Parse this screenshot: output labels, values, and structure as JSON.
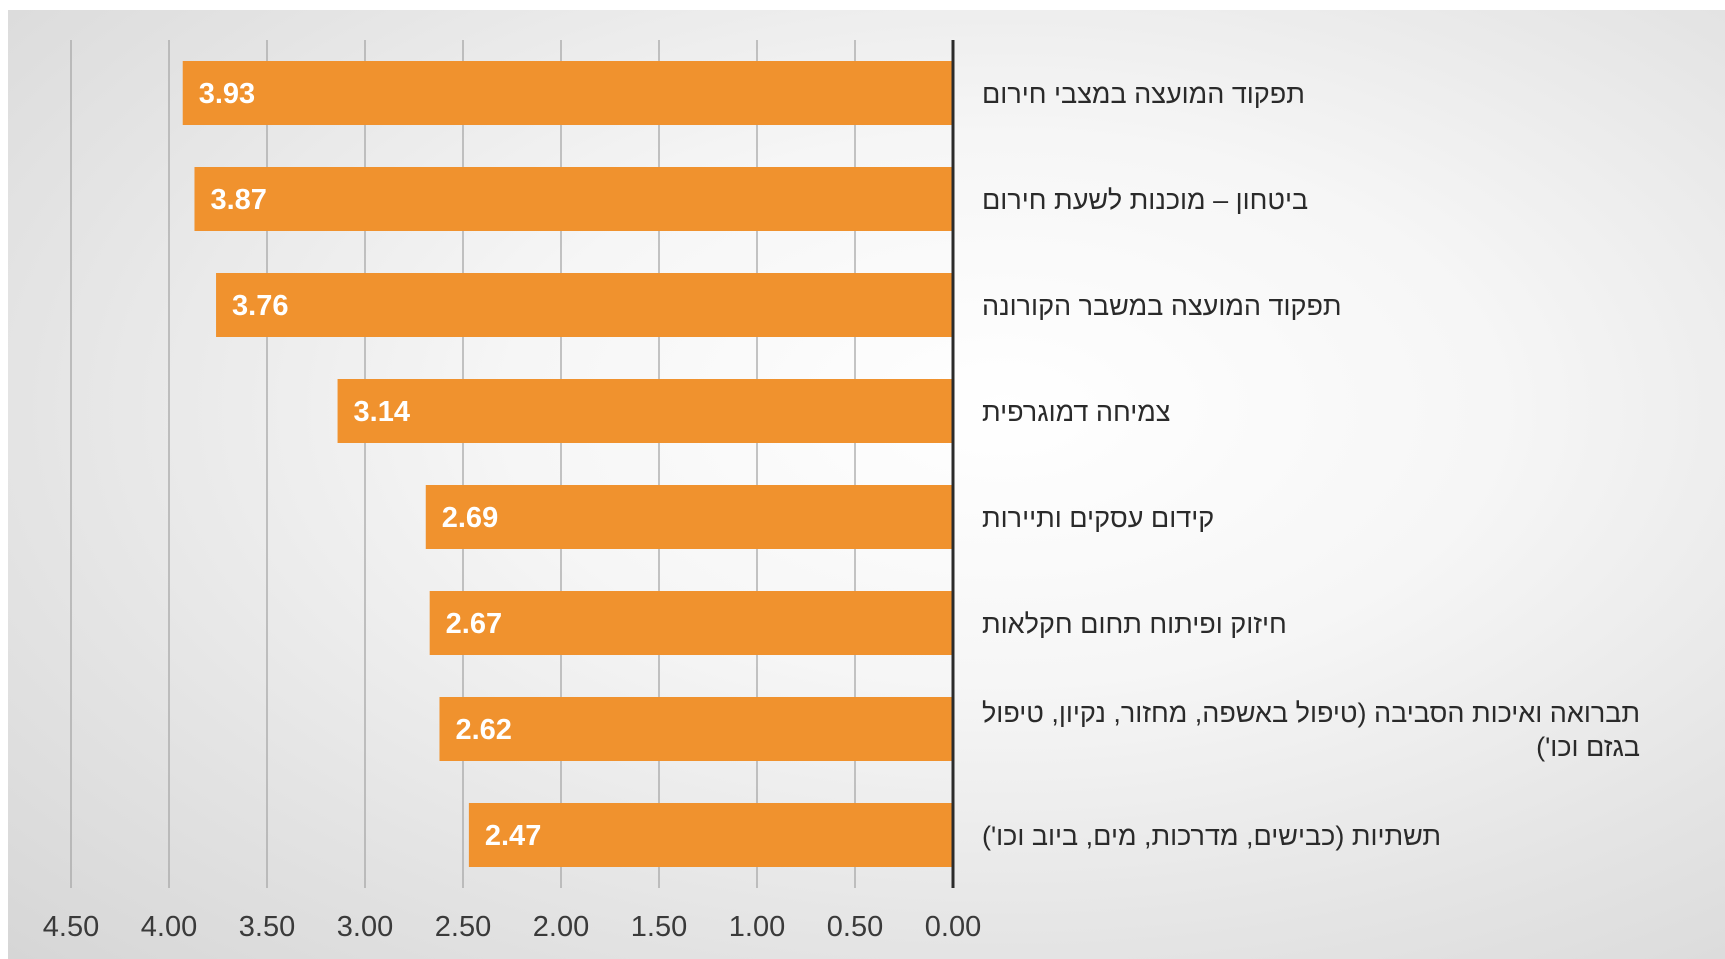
{
  "chart_data": {
    "type": "bar",
    "orientation": "horizontal",
    "x_axis_reversed": true,
    "categories": [
      "תפקוד המועצה במצבי חירום",
      "ביטחון – מוכנות לשעת חירום",
      "תפקוד המועצה במשבר  הקורונה",
      "צמיחה דמוגרפית",
      "קידום עסקים ותיירות",
      "חיזוק ופיתוח תחום  חקלאות",
      "תברואה ואיכות הסביבה (טיפול באשפה, מחזור, נקיון, טיפול בגזם וכו')",
      "תשתיות (כבישים, מדרכות, מים, ביוב וכו')"
    ],
    "category_lines": [
      [
        "תפקוד המועצה במצבי חירום"
      ],
      [
        "ביטחון – מוכנות לשעת חירום"
      ],
      [
        "תפקוד המועצה במשבר  הקורונה"
      ],
      [
        "צמיחה דמוגרפית"
      ],
      [
        "קידום עסקים ותיירות"
      ],
      [
        "חיזוק ופיתוח תחום  חקלאות"
      ],
      [
        "תברואה ואיכות הסביבה (טיפול באשפה, מחזור, נקיון, טיפול",
        "בגזם וכו')"
      ],
      [
        "תשתיות (כבישים, מדרכות, מים, ביוב וכו')"
      ]
    ],
    "values": [
      3.93,
      3.87,
      3.76,
      3.14,
      2.69,
      2.67,
      2.62,
      2.47
    ],
    "data_labels": [
      "3.93",
      "3.87",
      "3.76",
      "3.14",
      "2.69",
      "2.67",
      "2.62",
      "2.47"
    ],
    "x_ticks": [
      "4.50",
      "4.00",
      "3.50",
      "3.00",
      "2.50",
      "2.00",
      "1.50",
      "1.00",
      "0.50",
      "0.00"
    ],
    "x_tick_values": [
      4.5,
      4.0,
      3.5,
      3.0,
      2.5,
      2.0,
      1.5,
      1.0,
      0.5,
      0.0
    ],
    "xlim": [
      0,
      4.5
    ],
    "grid": true,
    "bar_color": "#F0922E",
    "grid_color": "#a6a6a6",
    "axis_color": "#2b2b2b",
    "title": "",
    "xlabel": "",
    "ylabel": ""
  }
}
